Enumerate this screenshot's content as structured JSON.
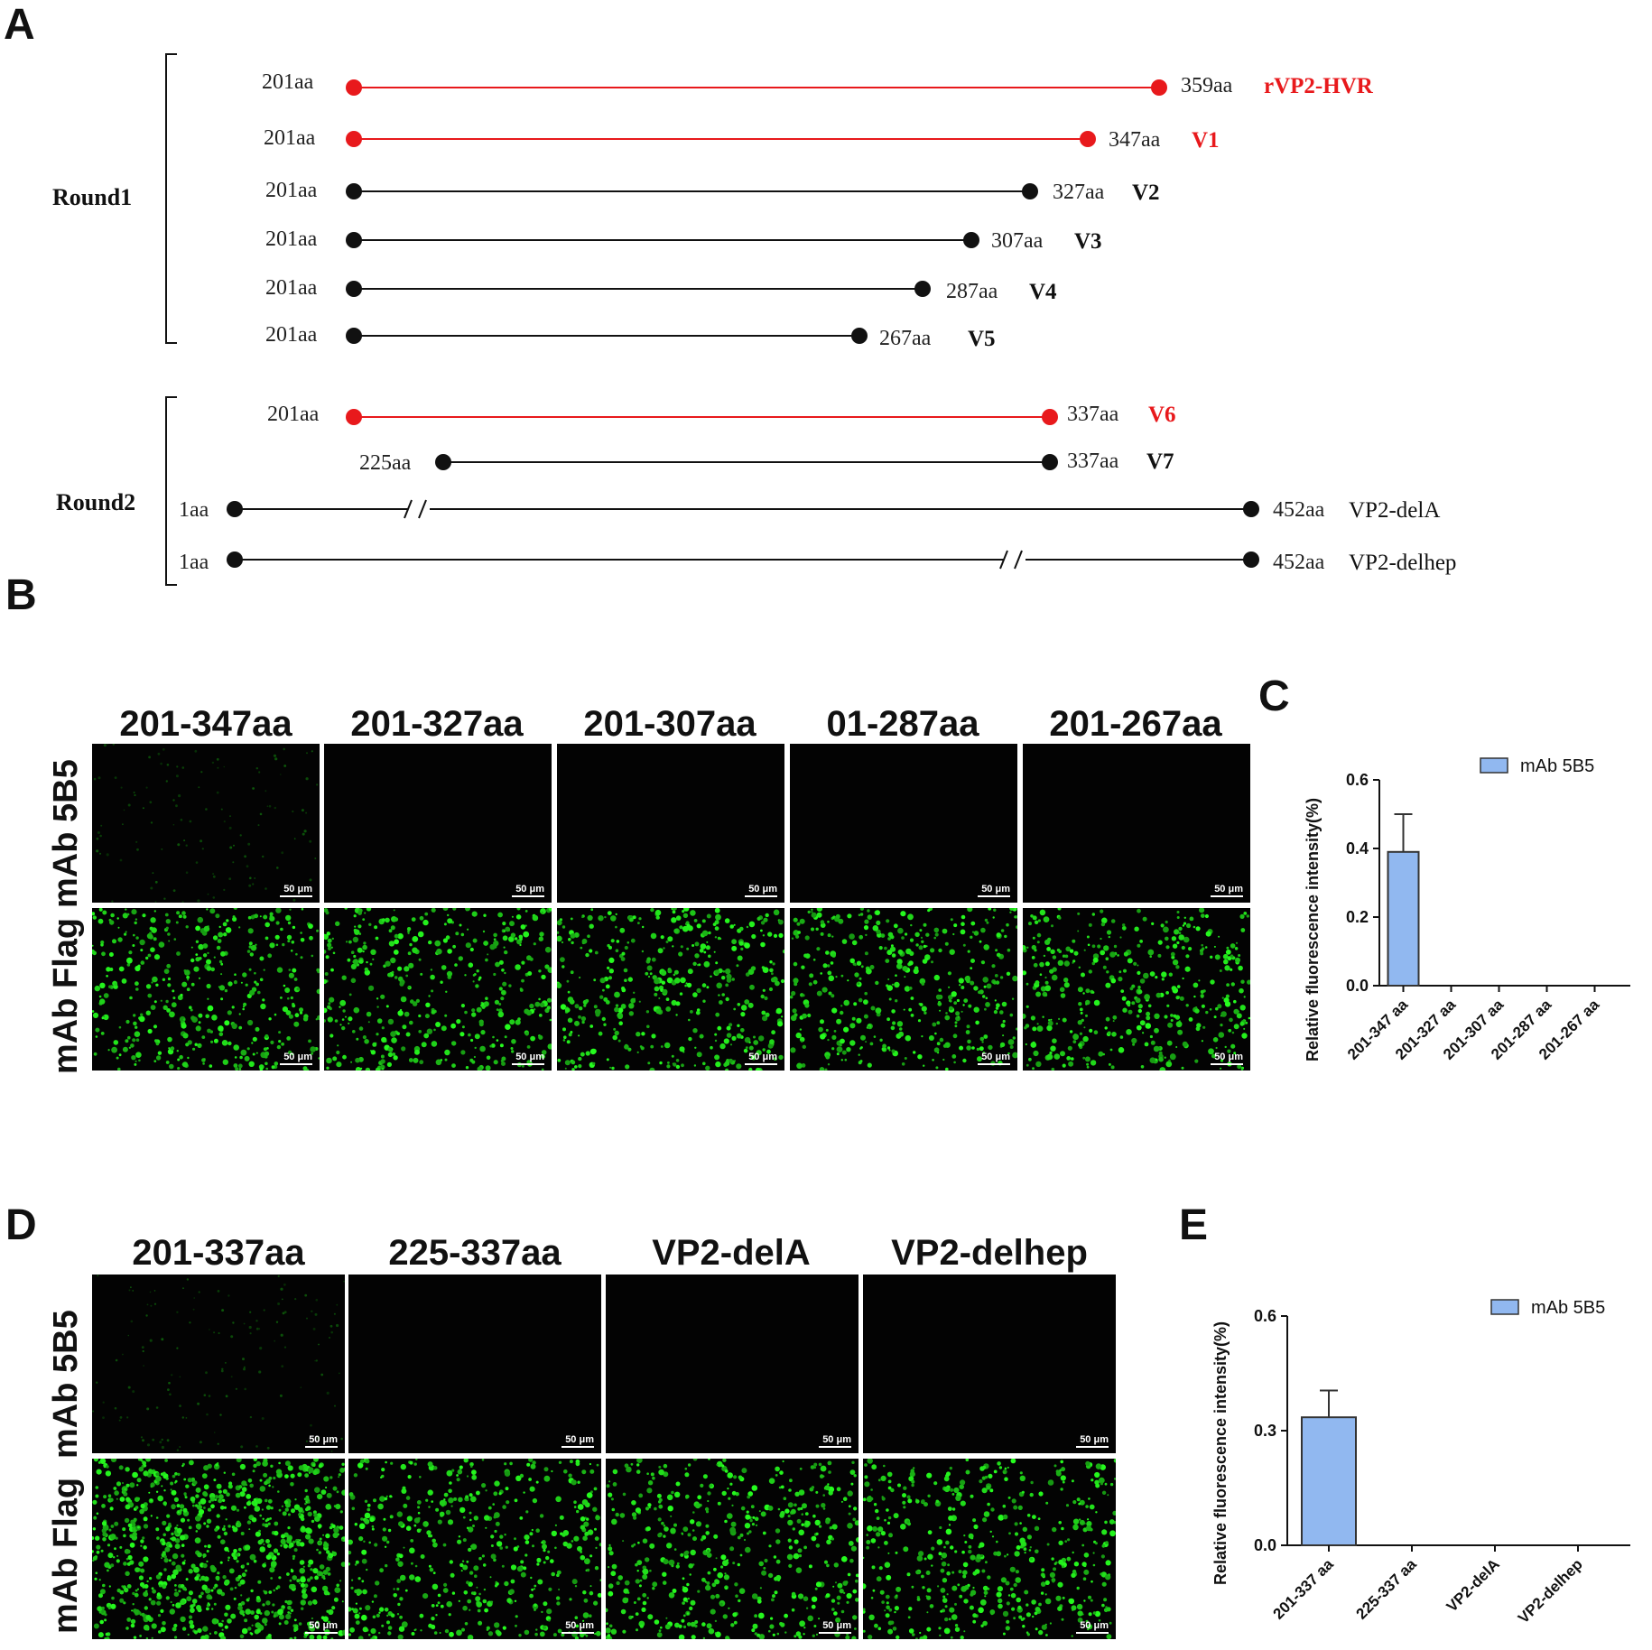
{
  "panels": {
    "A": "A",
    "B": "B",
    "C": "C",
    "D": "D",
    "E": "E"
  },
  "panelA": {
    "round1_label": "Round1",
    "round2_label": "Round2",
    "constructs": [
      {
        "start": "201aa",
        "end": "359aa",
        "name": "rVP2-HVR",
        "color": "#e8191c",
        "name_color": "#e8191c"
      },
      {
        "start": "201aa",
        "end": "347aa",
        "name": "V1",
        "color": "#e8191c",
        "name_color": "#e8191c"
      },
      {
        "start": "201aa",
        "end": "327aa",
        "name": "V2",
        "color": "#111111",
        "name_color": "#111111"
      },
      {
        "start": "201aa",
        "end": "307aa",
        "name": "V3",
        "color": "#111111",
        "name_color": "#111111"
      },
      {
        "start": "201aa",
        "end": "287aa",
        "name": "V4",
        "color": "#111111",
        "name_color": "#111111"
      },
      {
        "start": "201aa",
        "end": "267aa",
        "name": "V5",
        "color": "#111111",
        "name_color": "#111111"
      },
      {
        "start": "201aa",
        "end": "337aa",
        "name": "V6",
        "color": "#e8191c",
        "name_color": "#e8191c"
      },
      {
        "start": "225aa",
        "end": "337aa",
        "name": "V7",
        "color": "#111111",
        "name_color": "#111111"
      },
      {
        "start": "1aa",
        "end": "452aa",
        "name": "VP2-delA",
        "color": "#111111",
        "name_color": "#111111"
      },
      {
        "start": "1aa",
        "end": "452aa",
        "name": "VP2-delhep",
        "color": "#111111",
        "name_color": "#111111"
      }
    ]
  },
  "panelB": {
    "columns": [
      "201-347aa",
      "201-327aa",
      "201-307aa",
      "01-287aa",
      "201-267aa"
    ],
    "rows": [
      "mAb 5B5",
      "mAb Flag"
    ],
    "scale_bar": "50 μm"
  },
  "panelD": {
    "columns": [
      "201-337aa",
      "225-337aa",
      "VP2-delA",
      "VP2-delhep"
    ],
    "rows": [
      "mAb 5B5",
      "mAb Flag"
    ],
    "scale_bar": "50 μm"
  },
  "chart_data": [
    {
      "type": "bar",
      "categories": [
        "201-347 aa",
        "201-327 aa",
        "201-307 aa",
        "201-287 aa",
        "201-267 aa"
      ],
      "series": [
        {
          "name": "mAb 5B5",
          "values": [
            0.39,
            0,
            0,
            0,
            0
          ],
          "error": [
            0.11,
            0,
            0,
            0,
            0
          ]
        }
      ],
      "ylabel": "Relative  fluorescence intensity(%)",
      "ylim": [
        0,
        0.6
      ],
      "yticks": [
        "0.0",
        "0.2",
        "0.4",
        "0.6"
      ],
      "legend": "top-right",
      "color": "#91b8f0"
    },
    {
      "type": "bar",
      "categories": [
        "201-337 aa",
        "225-337 aa",
        "VP2-delA",
        "VP2-delhep"
      ],
      "series": [
        {
          "name": "mAb 5B5",
          "values": [
            0.335,
            0,
            0,
            0
          ],
          "error": [
            0.07,
            0,
            0,
            0
          ]
        }
      ],
      "ylabel": "Relative  fluorescence intensity(%)",
      "ylim": [
        0,
        0.6
      ],
      "yticks": [
        "0.0",
        "0.3",
        "0.6"
      ],
      "legend": "top-right",
      "color": "#91b8f0"
    }
  ]
}
